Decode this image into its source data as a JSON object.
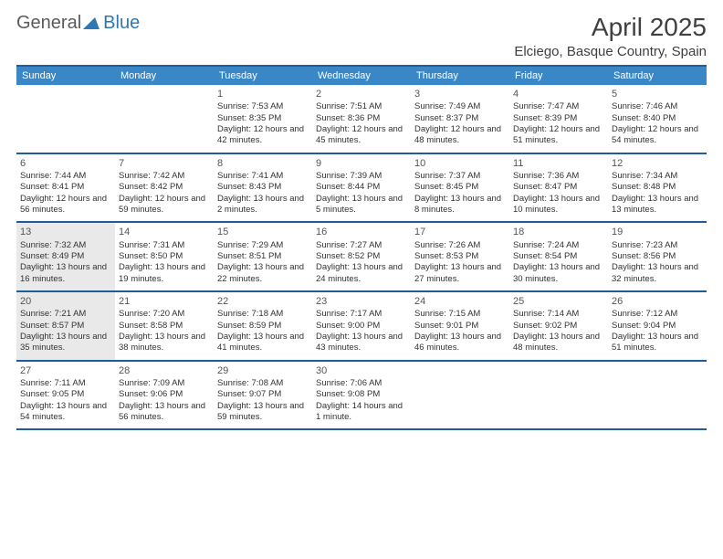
{
  "logo": {
    "part1": "General",
    "part2": "Blue"
  },
  "title": "April 2025",
  "location": "Elciego, Basque Country, Spain",
  "header_bg": "#3a87c8",
  "border_color": "#1d5d9b",
  "shaded_bg": "#e9e9e9",
  "days_of_week": [
    "Sunday",
    "Monday",
    "Tuesday",
    "Wednesday",
    "Thursday",
    "Friday",
    "Saturday"
  ],
  "weeks": [
    [
      {
        "n": "",
        "shaded": false
      },
      {
        "n": "",
        "shaded": false
      },
      {
        "n": "1",
        "shaded": false,
        "sr": "Sunrise: 7:53 AM",
        "ss": "Sunset: 8:35 PM",
        "dl": "Daylight: 12 hours and 42 minutes."
      },
      {
        "n": "2",
        "shaded": false,
        "sr": "Sunrise: 7:51 AM",
        "ss": "Sunset: 8:36 PM",
        "dl": "Daylight: 12 hours and 45 minutes."
      },
      {
        "n": "3",
        "shaded": false,
        "sr": "Sunrise: 7:49 AM",
        "ss": "Sunset: 8:37 PM",
        "dl": "Daylight: 12 hours and 48 minutes."
      },
      {
        "n": "4",
        "shaded": false,
        "sr": "Sunrise: 7:47 AM",
        "ss": "Sunset: 8:39 PM",
        "dl": "Daylight: 12 hours and 51 minutes."
      },
      {
        "n": "5",
        "shaded": false,
        "sr": "Sunrise: 7:46 AM",
        "ss": "Sunset: 8:40 PM",
        "dl": "Daylight: 12 hours and 54 minutes."
      }
    ],
    [
      {
        "n": "6",
        "shaded": false,
        "sr": "Sunrise: 7:44 AM",
        "ss": "Sunset: 8:41 PM",
        "dl": "Daylight: 12 hours and 56 minutes."
      },
      {
        "n": "7",
        "shaded": false,
        "sr": "Sunrise: 7:42 AM",
        "ss": "Sunset: 8:42 PM",
        "dl": "Daylight: 12 hours and 59 minutes."
      },
      {
        "n": "8",
        "shaded": false,
        "sr": "Sunrise: 7:41 AM",
        "ss": "Sunset: 8:43 PM",
        "dl": "Daylight: 13 hours and 2 minutes."
      },
      {
        "n": "9",
        "shaded": false,
        "sr": "Sunrise: 7:39 AM",
        "ss": "Sunset: 8:44 PM",
        "dl": "Daylight: 13 hours and 5 minutes."
      },
      {
        "n": "10",
        "shaded": false,
        "sr": "Sunrise: 7:37 AM",
        "ss": "Sunset: 8:45 PM",
        "dl": "Daylight: 13 hours and 8 minutes."
      },
      {
        "n": "11",
        "shaded": false,
        "sr": "Sunrise: 7:36 AM",
        "ss": "Sunset: 8:47 PM",
        "dl": "Daylight: 13 hours and 10 minutes."
      },
      {
        "n": "12",
        "shaded": false,
        "sr": "Sunrise: 7:34 AM",
        "ss": "Sunset: 8:48 PM",
        "dl": "Daylight: 13 hours and 13 minutes."
      }
    ],
    [
      {
        "n": "13",
        "shaded": true,
        "sr": "Sunrise: 7:32 AM",
        "ss": "Sunset: 8:49 PM",
        "dl": "Daylight: 13 hours and 16 minutes."
      },
      {
        "n": "14",
        "shaded": false,
        "sr": "Sunrise: 7:31 AM",
        "ss": "Sunset: 8:50 PM",
        "dl": "Daylight: 13 hours and 19 minutes."
      },
      {
        "n": "15",
        "shaded": false,
        "sr": "Sunrise: 7:29 AM",
        "ss": "Sunset: 8:51 PM",
        "dl": "Daylight: 13 hours and 22 minutes."
      },
      {
        "n": "16",
        "shaded": false,
        "sr": "Sunrise: 7:27 AM",
        "ss": "Sunset: 8:52 PM",
        "dl": "Daylight: 13 hours and 24 minutes."
      },
      {
        "n": "17",
        "shaded": false,
        "sr": "Sunrise: 7:26 AM",
        "ss": "Sunset: 8:53 PM",
        "dl": "Daylight: 13 hours and 27 minutes."
      },
      {
        "n": "18",
        "shaded": false,
        "sr": "Sunrise: 7:24 AM",
        "ss": "Sunset: 8:54 PM",
        "dl": "Daylight: 13 hours and 30 minutes."
      },
      {
        "n": "19",
        "shaded": false,
        "sr": "Sunrise: 7:23 AM",
        "ss": "Sunset: 8:56 PM",
        "dl": "Daylight: 13 hours and 32 minutes."
      }
    ],
    [
      {
        "n": "20",
        "shaded": true,
        "sr": "Sunrise: 7:21 AM",
        "ss": "Sunset: 8:57 PM",
        "dl": "Daylight: 13 hours and 35 minutes."
      },
      {
        "n": "21",
        "shaded": false,
        "sr": "Sunrise: 7:20 AM",
        "ss": "Sunset: 8:58 PM",
        "dl": "Daylight: 13 hours and 38 minutes."
      },
      {
        "n": "22",
        "shaded": false,
        "sr": "Sunrise: 7:18 AM",
        "ss": "Sunset: 8:59 PM",
        "dl": "Daylight: 13 hours and 41 minutes."
      },
      {
        "n": "23",
        "shaded": false,
        "sr": "Sunrise: 7:17 AM",
        "ss": "Sunset: 9:00 PM",
        "dl": "Daylight: 13 hours and 43 minutes."
      },
      {
        "n": "24",
        "shaded": false,
        "sr": "Sunrise: 7:15 AM",
        "ss": "Sunset: 9:01 PM",
        "dl": "Daylight: 13 hours and 46 minutes."
      },
      {
        "n": "25",
        "shaded": false,
        "sr": "Sunrise: 7:14 AM",
        "ss": "Sunset: 9:02 PM",
        "dl": "Daylight: 13 hours and 48 minutes."
      },
      {
        "n": "26",
        "shaded": false,
        "sr": "Sunrise: 7:12 AM",
        "ss": "Sunset: 9:04 PM",
        "dl": "Daylight: 13 hours and 51 minutes."
      }
    ],
    [
      {
        "n": "27",
        "shaded": false,
        "sr": "Sunrise: 7:11 AM",
        "ss": "Sunset: 9:05 PM",
        "dl": "Daylight: 13 hours and 54 minutes."
      },
      {
        "n": "28",
        "shaded": false,
        "sr": "Sunrise: 7:09 AM",
        "ss": "Sunset: 9:06 PM",
        "dl": "Daylight: 13 hours and 56 minutes."
      },
      {
        "n": "29",
        "shaded": false,
        "sr": "Sunrise: 7:08 AM",
        "ss": "Sunset: 9:07 PM",
        "dl": "Daylight: 13 hours and 59 minutes."
      },
      {
        "n": "30",
        "shaded": false,
        "sr": "Sunrise: 7:06 AM",
        "ss": "Sunset: 9:08 PM",
        "dl": "Daylight: 14 hours and 1 minute."
      },
      {
        "n": "",
        "shaded": false
      },
      {
        "n": "",
        "shaded": false
      },
      {
        "n": "",
        "shaded": false
      }
    ]
  ]
}
